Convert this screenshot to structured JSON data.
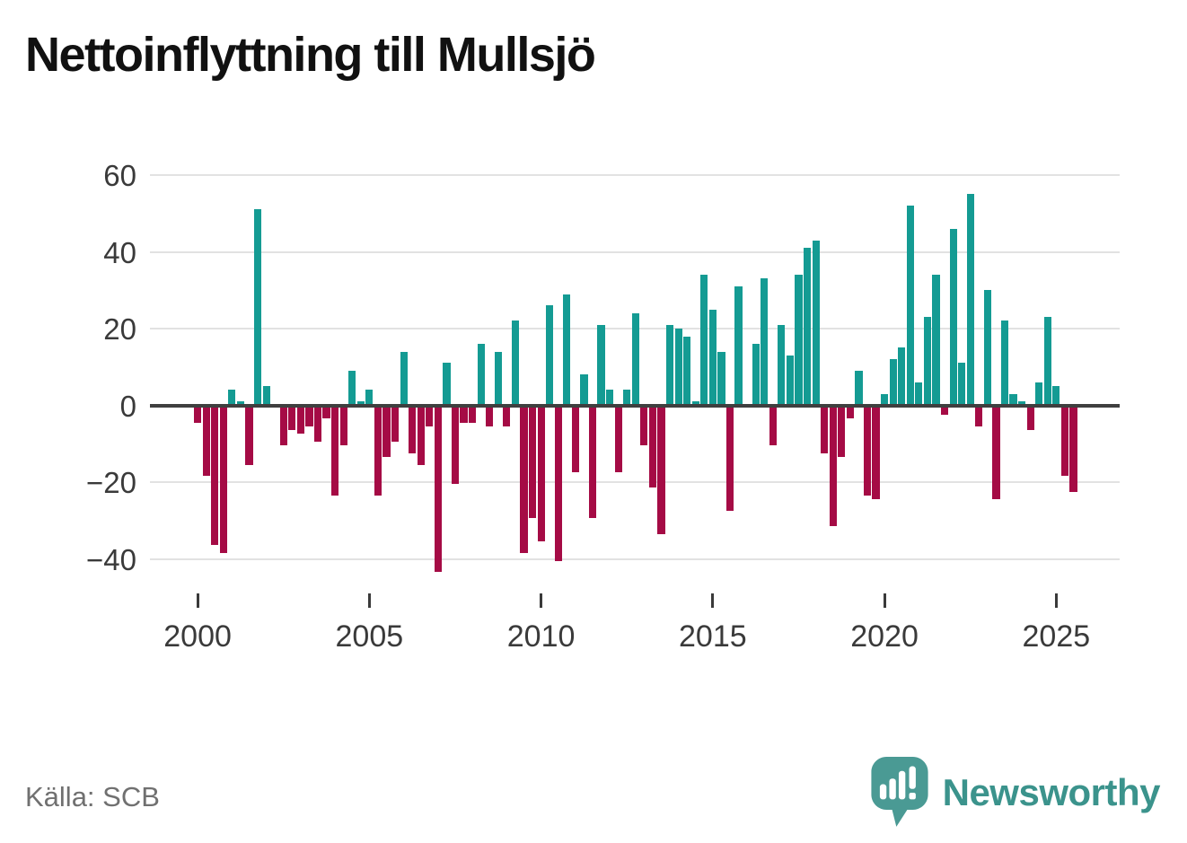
{
  "title": "Nettoinflyttning till Mullsjö",
  "source": "Källa: SCB",
  "branding": {
    "name": "Newsworthy"
  },
  "chart_data": {
    "type": "bar",
    "title": "Nettoinflyttning till Mullsjö",
    "frequency": "quarterly",
    "start_period": "2000-Q1",
    "end_period": "2025-Q3",
    "xlabel": "",
    "ylabel": "",
    "ylim": [
      -47,
      63
    ],
    "grid": true,
    "y_ticks": [
      60,
      40,
      20,
      0,
      -20,
      -40
    ],
    "y_tick_labels": [
      "60",
      "40",
      "20",
      "0",
      "−20",
      "−40"
    ],
    "x_tick_years": [
      2000,
      2005,
      2010,
      2015,
      2020,
      2025
    ],
    "x_tick_labels": [
      "2000",
      "2005",
      "2010",
      "2015",
      "2020",
      "2025"
    ],
    "positive_color": "#149b93",
    "negative_color": "#a50b45",
    "values": [
      -4,
      -18,
      -36,
      -38,
      4,
      1,
      -15,
      51,
      5,
      0,
      -10,
      -6,
      -7,
      -5,
      -9,
      -3,
      -23,
      -10,
      9,
      1,
      4,
      -23,
      -13,
      -9,
      14,
      -12,
      -15,
      -5,
      -43,
      11,
      -20,
      -4,
      -4,
      16,
      -5,
      14,
      -5,
      22,
      -38,
      -29,
      -35,
      26,
      -40,
      29,
      -17,
      8,
      -29,
      21,
      4,
      -17,
      4,
      24,
      -10,
      -21,
      -33,
      21,
      20,
      18,
      1,
      34,
      25,
      14,
      -27,
      31,
      0,
      16,
      33,
      -10,
      21,
      13,
      34,
      41,
      43,
      -12,
      -31,
      -13,
      -3,
      9,
      -23,
      -24,
      3,
      12,
      15,
      52,
      6,
      23,
      34,
      -2,
      46,
      11,
      55,
      -5,
      30,
      -24,
      22,
      3,
      1,
      -6,
      6,
      23,
      5,
      -18,
      -22
    ]
  }
}
